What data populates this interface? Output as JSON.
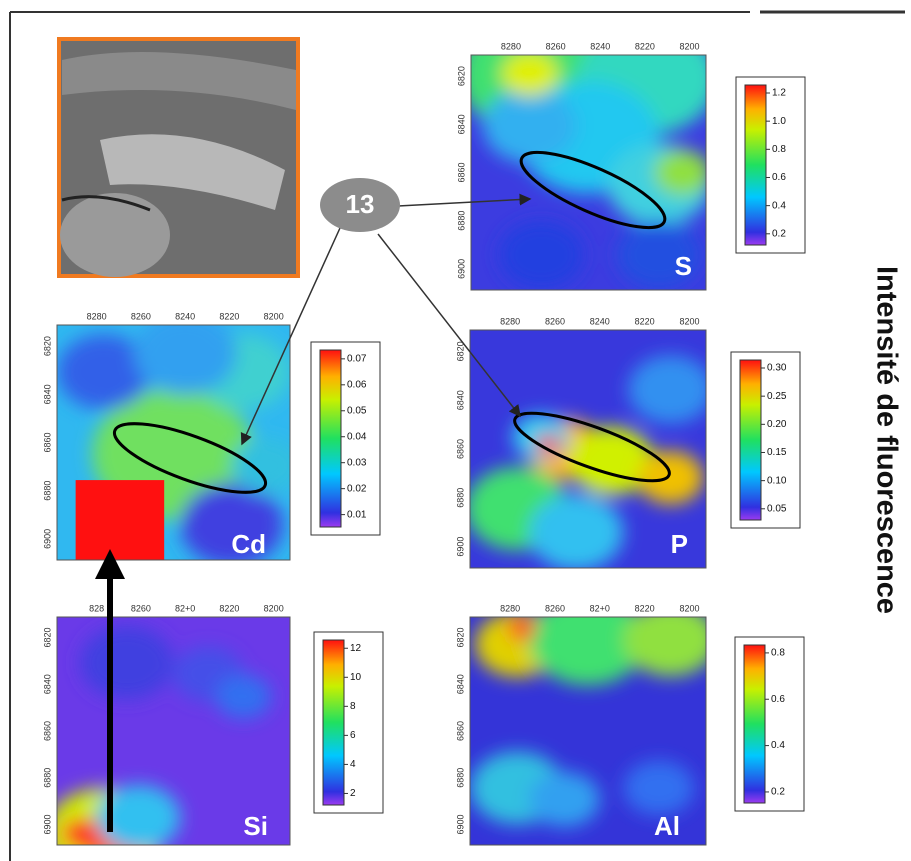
{
  "side_title": "Intensité de fluorescence",
  "callout": "13",
  "maps": [
    {
      "label": "S",
      "x_ticks": [
        "8280",
        "8260",
        "8240",
        "8220",
        "8200"
      ],
      "y_ticks": [
        "6820",
        "6840",
        "6860",
        "6880",
        "6900"
      ],
      "colorbar_ticks": [
        "1.2",
        "1.0",
        "0.8",
        "0.6",
        "0.4",
        "0.2"
      ]
    },
    {
      "label": "Cd",
      "x_ticks": [
        "8280",
        "8260",
        "8240",
        "8220",
        "8200"
      ],
      "y_ticks": [
        "6820",
        "6840",
        "6860",
        "6880",
        "6900"
      ],
      "colorbar_ticks": [
        "0.07",
        "0.06",
        "0.05",
        "0.04",
        "0.03",
        "0.02",
        "0.01"
      ]
    },
    {
      "label": "P",
      "x_ticks": [
        "8280",
        "8260",
        "8240",
        "8220",
        "8200"
      ],
      "y_ticks": [
        "6820",
        "6840",
        "6860",
        "6880",
        "6900"
      ],
      "colorbar_ticks": [
        "0.30",
        "0.25",
        "0.20",
        "0.15",
        "0.10",
        "0.05"
      ]
    },
    {
      "label": "Si",
      "x_ticks": [
        "828",
        "8260",
        "82+0",
        "8220",
        "8200"
      ],
      "y_ticks": [
        "6820",
        "6840",
        "6860",
        "6880",
        "6900"
      ],
      "colorbar_ticks": [
        "12",
        "10",
        "8",
        "6",
        "4",
        "2"
      ]
    },
    {
      "label": "Al",
      "x_ticks": [
        "8280",
        "8260",
        "82+0",
        "8220",
        "8200"
      ],
      "y_ticks": [
        "6820",
        "6840",
        "6860",
        "6880",
        "6900"
      ],
      "colorbar_ticks": [
        "0.8",
        "0.6",
        "0.4",
        "0.2"
      ]
    }
  ]
}
